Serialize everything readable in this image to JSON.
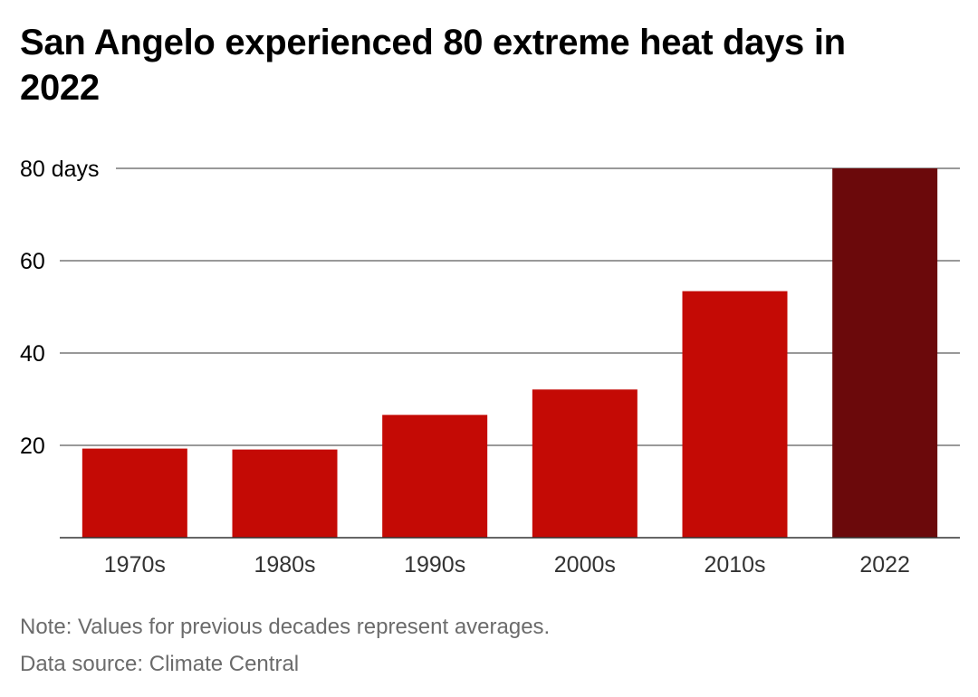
{
  "title": "San Angelo experienced 80 extreme heat days in 2022",
  "note": "Note: Values for previous decades represent averages.",
  "source": "Data source: Climate Central",
  "colors": {
    "bar": "#c40a05",
    "highlight": "#6b090b",
    "grid": "#333333",
    "axis_text": "#000000",
    "tick_text": "#333333"
  },
  "chart_data": {
    "type": "bar",
    "categories": [
      "1970s",
      "1980s",
      "1990s",
      "2000s",
      "2010s",
      "2022"
    ],
    "values": [
      19.3,
      19.1,
      26.6,
      32.1,
      53.4,
      80
    ],
    "highlight_index": 5,
    "title": "San Angelo experienced 80 extreme heat days in 2022",
    "xlabel": "",
    "ylabel": "",
    "ylim": [
      0,
      80
    ],
    "yticks": [
      20,
      40,
      60,
      80
    ],
    "ytick_labels": [
      "20",
      "40",
      "60",
      "80 days"
    ],
    "grid": true,
    "legend": "none"
  }
}
